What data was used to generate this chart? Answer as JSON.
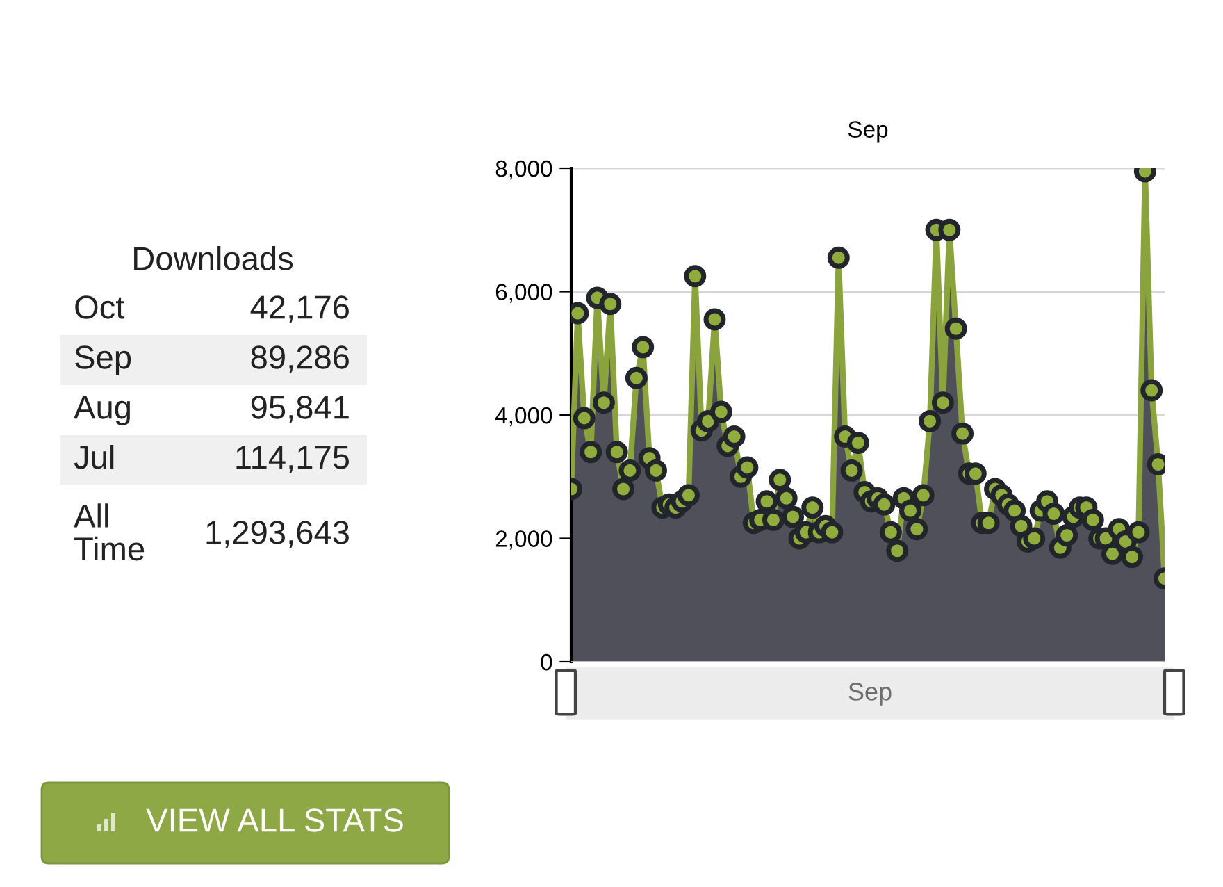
{
  "chart_data": [
    {
      "type": "area",
      "title": "Sep",
      "categories": [
        null,
        null,
        null,
        null,
        null,
        null,
        null,
        null,
        null,
        null,
        null,
        null,
        null,
        null,
        null,
        null,
        null,
        null,
        null,
        null,
        null,
        null,
        null,
        null,
        null,
        null,
        null,
        null,
        null,
        null,
        null,
        null,
        null,
        null,
        null,
        null,
        null,
        null,
        null,
        null,
        null,
        null,
        null,
        null,
        null,
        null,
        null,
        null,
        null,
        null,
        null,
        null,
        null,
        null,
        null,
        null,
        null,
        null,
        null,
        null,
        null,
        null,
        null,
        null,
        null,
        null,
        null,
        null,
        null,
        null,
        null,
        null,
        null,
        null,
        null,
        null,
        null,
        null,
        null,
        null,
        null,
        null,
        null,
        null,
        null,
        null,
        null,
        null,
        null,
        null,
        null,
        null
      ],
      "series": [
        {
          "color": "#8aa33c",
          "values": [
            2800,
            5650,
            3950,
            3400,
            5900,
            4200,
            5800,
            3400,
            2800,
            3100,
            4600,
            5100,
            3300,
            3100,
            2500,
            2550,
            2500,
            2600,
            2700,
            6250,
            3750,
            3900,
            5550,
            4050,
            3500,
            3650,
            3000,
            3150,
            2250,
            2300,
            2600,
            2300,
            2950,
            2650,
            2350,
            2000,
            2100,
            2500,
            2100,
            2200,
            2100,
            6550,
            3650,
            3100,
            3550,
            2750,
            2600,
            2650,
            2550,
            2100,
            1800,
            2650,
            2450,
            2150,
            2700,
            3900,
            7000,
            4200,
            7000,
            5400,
            3700,
            3050,
            3050,
            2250,
            2250,
            2800,
            2700,
            2550,
            2450,
            2200,
            1950,
            2000,
            2450,
            2600,
            2400,
            1850,
            2050,
            2350,
            2500,
            2500,
            2300,
            2000,
            2000,
            1750,
            2150,
            1950,
            1700,
            2100,
            7950,
            4400,
            3200,
            1350
          ]
        }
      ],
      "ylim": [
        0,
        8000
      ],
      "yticks": [
        {
          "value": 0,
          "label": "0"
        },
        {
          "value": 2000,
          "label": "2,000"
        },
        {
          "value": 4000,
          "label": "4,000"
        },
        {
          "value": 6000,
          "label": "6,000"
        },
        {
          "value": 8000,
          "label": "8,000"
        }
      ],
      "grid": "y",
      "marker": "circle",
      "legend": false,
      "annotations": [
        "Sep"
      ]
    },
    {
      "type": "other",
      "title": "Downloads",
      "annotations": [
        "Oct",
        "42,176",
        "Sep",
        "89,286",
        "Aug",
        "95,841",
        "Jul",
        "114,175",
        "All Time",
        "1,293,643",
        "VIEW ALL STATS"
      ]
    }
  ]
}
